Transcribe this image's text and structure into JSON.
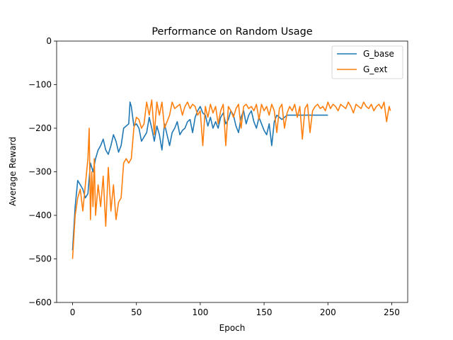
{
  "chart_data": {
    "type": "line",
    "title": "Performance on Random Usage",
    "xlabel": "Epoch",
    "ylabel": "Average Reward",
    "xlim": [
      -12.5,
      262.5
    ],
    "ylim": [
      -600,
      0
    ],
    "xticks": [
      0,
      50,
      100,
      150,
      200,
      250
    ],
    "yticks": [
      0,
      -100,
      -200,
      -300,
      -400,
      -500,
      -600
    ],
    "xtick_labels": [
      "0",
      "50",
      "100",
      "150",
      "200",
      "250"
    ],
    "ytick_labels": [
      "0",
      "−100",
      "−200",
      "−300",
      "−400",
      "−500",
      "−600"
    ],
    "grid": false,
    "legend_position": "top-right",
    "series": [
      {
        "name": "G_base",
        "color": "#1f77b4",
        "x": [
          0,
          2,
          4,
          6,
          8,
          10,
          12,
          14,
          16,
          18,
          20,
          22,
          24,
          26,
          28,
          30,
          32,
          34,
          36,
          38,
          40,
          42,
          44,
          45,
          46,
          48,
          50,
          52,
          54,
          56,
          58,
          60,
          62,
          64,
          66,
          68,
          70,
          72,
          74,
          76,
          78,
          80,
          82,
          84,
          86,
          88,
          90,
          92,
          94,
          96,
          98,
          100,
          102,
          104,
          106,
          108,
          110,
          112,
          114,
          116,
          118,
          120,
          122,
          124,
          126,
          128,
          130,
          132,
          134,
          136,
          138,
          140,
          142,
          144,
          146,
          148,
          150,
          152,
          154,
          156,
          158,
          160,
          162,
          164,
          166,
          168,
          170,
          175,
          180,
          185,
          190,
          195,
          200
        ],
        "values": [
          -480,
          -380,
          -320,
          -330,
          -340,
          -360,
          -350,
          -280,
          -300,
          -270,
          -250,
          -240,
          -225,
          -250,
          -260,
          -240,
          -215,
          -230,
          -255,
          -240,
          -200,
          -195,
          -190,
          -140,
          -150,
          -195,
          -190,
          -200,
          -230,
          -220,
          -210,
          -175,
          -200,
          -230,
          -195,
          -215,
          -250,
          -190,
          -215,
          -240,
          -210,
          -200,
          -185,
          -215,
          -205,
          -200,
          -185,
          -180,
          -210,
          -175,
          -160,
          -150,
          -165,
          -170,
          -195,
          -175,
          -200,
          -185,
          -200,
          -175,
          -165,
          -190,
          -180,
          -160,
          -170,
          -195,
          -210,
          -175,
          -160,
          -190,
          -170,
          -160,
          -185,
          -200,
          -175,
          -190,
          -205,
          -215,
          -190,
          -240,
          -185,
          -170,
          -175,
          -180,
          -175,
          -170,
          -170,
          -170,
          -170,
          -170,
          -170,
          -170,
          -170
        ]
      },
      {
        "name": "G_ext",
        "color": "#ff7f0e",
        "x": [
          0,
          2,
          4,
          6,
          8,
          10,
          12,
          13,
          14,
          15,
          16,
          17,
          18,
          20,
          22,
          24,
          26,
          28,
          30,
          32,
          34,
          36,
          38,
          40,
          42,
          44,
          46,
          48,
          50,
          52,
          54,
          56,
          58,
          60,
          62,
          64,
          66,
          68,
          70,
          72,
          74,
          76,
          78,
          80,
          82,
          84,
          86,
          88,
          90,
          92,
          94,
          96,
          98,
          100,
          102,
          104,
          106,
          108,
          110,
          112,
          114,
          116,
          118,
          120,
          122,
          124,
          126,
          128,
          130,
          132,
          134,
          136,
          138,
          140,
          142,
          144,
          146,
          148,
          150,
          152,
          154,
          156,
          158,
          160,
          162,
          164,
          166,
          168,
          170,
          172,
          174,
          176,
          178,
          180,
          182,
          184,
          186,
          188,
          190,
          192,
          194,
          196,
          198,
          200,
          202,
          204,
          206,
          208,
          210,
          212,
          214,
          216,
          218,
          220,
          222,
          224,
          226,
          228,
          230,
          232,
          234,
          236,
          238,
          240,
          242,
          244,
          246,
          248,
          249
        ],
        "values": [
          -500,
          -400,
          -360,
          -340,
          -390,
          -330,
          -270,
          -200,
          -410,
          -300,
          -380,
          -270,
          -400,
          -330,
          -380,
          -310,
          -425,
          -290,
          -390,
          -330,
          -410,
          -370,
          -360,
          -280,
          -270,
          -280,
          -270,
          -200,
          -175,
          -180,
          -200,
          -190,
          -140,
          -170,
          -135,
          -215,
          -140,
          -170,
          -140,
          -200,
          -185,
          -170,
          -140,
          -155,
          -150,
          -145,
          -170,
          -150,
          -140,
          -155,
          -145,
          -150,
          -170,
          -160,
          -240,
          -150,
          -175,
          -145,
          -165,
          -150,
          -190,
          -160,
          -145,
          -240,
          -150,
          -160,
          -175,
          -155,
          -145,
          -200,
          -150,
          -145,
          -155,
          -150,
          -160,
          -145,
          -180,
          -145,
          -160,
          -150,
          -170,
          -145,
          -160,
          -210,
          -155,
          -145,
          -200,
          -165,
          -150,
          -160,
          -145,
          -175,
          -150,
          -225,
          -155,
          -145,
          -210,
          -160,
          -150,
          -145,
          -155,
          -150,
          -160,
          -140,
          -155,
          -145,
          -150,
          -160,
          -145,
          -150,
          -155,
          -140,
          -150,
          -165,
          -145,
          -150,
          -155,
          -140,
          -150,
          -155,
          -145,
          -160,
          -150,
          -145,
          -155,
          -140,
          -185,
          -150,
          -160
        ]
      }
    ]
  }
}
